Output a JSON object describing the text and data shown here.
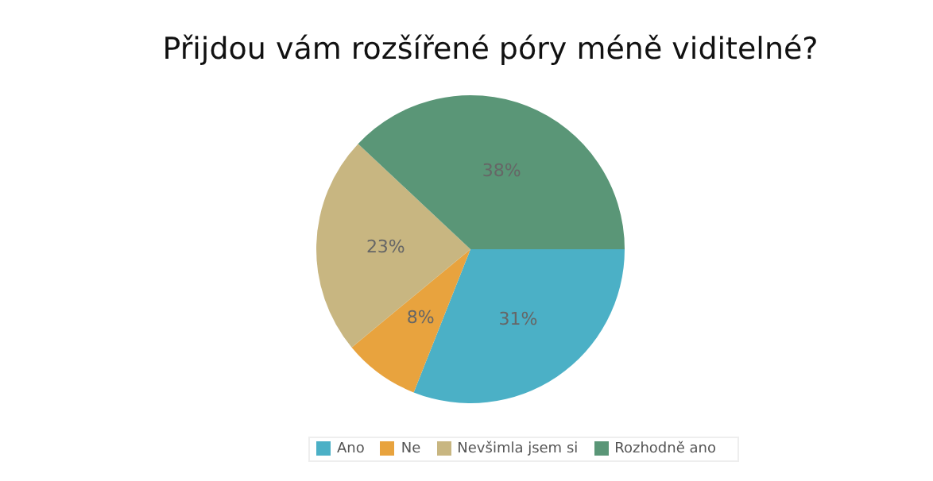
{
  "chart_data": {
    "type": "pie",
    "title": "Přijdou vám rozšířené póry méně viditelné?",
    "categories": [
      "Ano",
      "Ne",
      "Nevšimla jsem si",
      "Rozhodně ano"
    ],
    "values": [
      31,
      8,
      23,
      38
    ],
    "colors": [
      "#4bb0c6",
      "#e8a33e",
      "#c8b681",
      "#5a9677"
    ],
    "value_labels": [
      "31%",
      "8%",
      "23%",
      "38%"
    ],
    "legend": "bottom"
  }
}
